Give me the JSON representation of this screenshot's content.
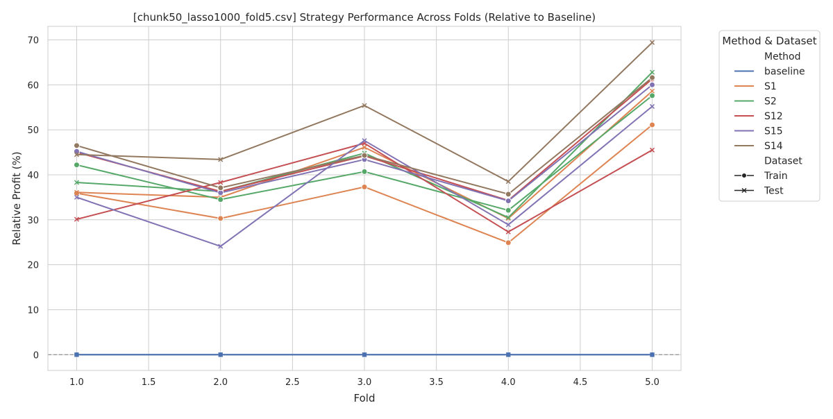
{
  "chart_data": {
    "type": "line",
    "title": "[chunk50_lasso1000_fold5.csv] Strategy Performance Across Folds (Relative to Baseline)",
    "xlabel": "Fold",
    "ylabel": "Relative Profit (%)",
    "x": [
      1,
      2,
      3,
      4,
      5
    ],
    "xticks": [
      "1.0",
      "1.5",
      "2.0",
      "2.5",
      "3.0",
      "3.5",
      "4.0",
      "4.5",
      "5.0"
    ],
    "xtick_values": [
      1.0,
      1.5,
      2.0,
      2.5,
      3.0,
      3.5,
      4.0,
      4.5,
      5.0
    ],
    "xlim": [
      0.8,
      5.2
    ],
    "yticks": [
      "0",
      "10",
      "20",
      "30",
      "40",
      "50",
      "60",
      "70"
    ],
    "ytick_values": [
      0,
      10,
      20,
      30,
      40,
      50,
      60,
      70
    ],
    "ylim": [
      -3.5,
      73
    ],
    "grid": true,
    "reference_line": {
      "y": 0,
      "style": "dashed",
      "color": "#808080"
    },
    "legend": {
      "title": "Method & Dataset",
      "placement": "outside-upper-right",
      "method_header": "Method",
      "dataset_header": "Dataset",
      "methods": [
        {
          "name": "baseline",
          "color": "#4c72b0"
        },
        {
          "name": "S1",
          "color": "#dd8452"
        },
        {
          "name": "S2",
          "color": "#55a868"
        },
        {
          "name": "S12",
          "color": "#c44e52"
        },
        {
          "name": "S15",
          "color": "#8172b3"
        },
        {
          "name": "S14",
          "color": "#937860"
        }
      ],
      "datasets": [
        {
          "name": "Train",
          "marker": "circle"
        },
        {
          "name": "Test",
          "marker": "x"
        }
      ]
    },
    "series": [
      {
        "method": "baseline",
        "dataset": "Train",
        "color": "#4c72b0",
        "marker": "circle",
        "values": [
          0,
          0,
          0,
          0,
          0
        ]
      },
      {
        "method": "baseline",
        "dataset": "Test",
        "color": "#4c72b0",
        "marker": "x",
        "values": [
          0,
          0,
          0,
          0,
          0
        ]
      },
      {
        "method": "S1",
        "dataset": "Train",
        "color": "#dd8452",
        "marker": "circle",
        "values": [
          35.9,
          30.3,
          37.3,
          24.9,
          51.1
        ]
      },
      {
        "method": "S1",
        "dataset": "Test",
        "color": "#dd8452",
        "marker": "x",
        "values": [
          36.1,
          35.0,
          46.1,
          30.3,
          58.6
        ]
      },
      {
        "method": "S2",
        "dataset": "Train",
        "color": "#55a868",
        "marker": "circle",
        "values": [
          42.2,
          34.5,
          40.7,
          32.1,
          57.6
        ]
      },
      {
        "method": "S2",
        "dataset": "Test",
        "color": "#55a868",
        "marker": "x",
        "values": [
          38.3,
          36.3,
          44.8,
          30.5,
          62.8
        ]
      },
      {
        "method": "S12",
        "dataset": "Train",
        "color": "#c44e52",
        "marker": "circle",
        "values": [
          45.0,
          36.3,
          44.2,
          34.3,
          61.3
        ]
      },
      {
        "method": "S12",
        "dataset": "Test",
        "color": "#c44e52",
        "marker": "x",
        "values": [
          30.1,
          38.3,
          47.0,
          27.3,
          45.5
        ]
      },
      {
        "method": "S15",
        "dataset": "Train",
        "color": "#8172b3",
        "marker": "circle",
        "values": [
          45.2,
          36.0,
          43.4,
          34.2,
          60.0
        ]
      },
      {
        "method": "S15",
        "dataset": "Test",
        "color": "#8172b3",
        "marker": "x",
        "values": [
          35.0,
          24.1,
          47.6,
          28.9,
          55.2
        ]
      },
      {
        "method": "S14",
        "dataset": "Train",
        "color": "#937860",
        "marker": "circle",
        "values": [
          46.5,
          37.1,
          44.3,
          35.7,
          61.6
        ]
      },
      {
        "method": "S14",
        "dataset": "Test",
        "color": "#937860",
        "marker": "x",
        "values": [
          44.5,
          43.4,
          55.4,
          38.5,
          69.4
        ]
      }
    ]
  }
}
